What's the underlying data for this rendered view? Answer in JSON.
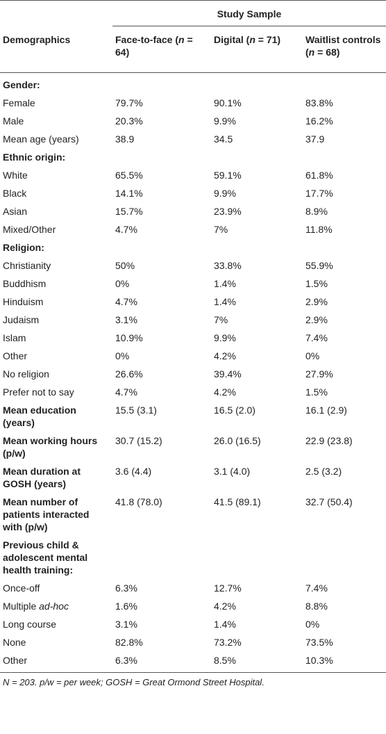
{
  "table": {
    "title": "Study Sample",
    "columns": [
      "Demographics",
      [
        "Face-to-face (",
        "n",
        " = 64)"
      ],
      [
        "Digital (",
        "n",
        " = 71)"
      ],
      [
        "Waitlist controls (",
        "n",
        " = 68)"
      ]
    ],
    "rows": [
      {
        "label": "Gender:",
        "bold": true
      },
      {
        "label": "Female",
        "values": [
          "79.7%",
          "90.1%",
          "83.8%"
        ]
      },
      {
        "label": "Male",
        "values": [
          "20.3%",
          "9.9%",
          "16.2%"
        ]
      },
      {
        "label": "Mean age (years)",
        "values": [
          "38.9",
          "34.5",
          "37.9"
        ]
      },
      {
        "label": "Ethnic origin:",
        "bold": true
      },
      {
        "label": "White",
        "values": [
          "65.5%",
          "59.1%",
          "61.8%"
        ]
      },
      {
        "label": "Black",
        "values": [
          "14.1%",
          "9.9%",
          "17.7%"
        ]
      },
      {
        "label": "Asian",
        "values": [
          "15.7%",
          "23.9%",
          "8.9%"
        ]
      },
      {
        "label": "Mixed/Other",
        "values": [
          "4.7%",
          "7%",
          "11.8%"
        ]
      },
      {
        "label": "Religion:",
        "bold": true
      },
      {
        "label": "Christianity",
        "values": [
          "50%",
          "33.8%",
          "55.9%"
        ]
      },
      {
        "label": "Buddhism",
        "values": [
          "0%",
          "1.4%",
          "1.5%"
        ]
      },
      {
        "label": "Hinduism",
        "values": [
          "4.7%",
          "1.4%",
          "2.9%"
        ]
      },
      {
        "label": "Judaism",
        "values": [
          "3.1%",
          "7%",
          "2.9%"
        ]
      },
      {
        "label": "Islam",
        "values": [
          "10.9%",
          "9.9%",
          "7.4%"
        ]
      },
      {
        "label": "Other",
        "values": [
          "0%",
          "4.2%",
          "0%"
        ]
      },
      {
        "label": "No religion",
        "values": [
          "26.6%",
          "39.4%",
          "27.9%"
        ]
      },
      {
        "label": "Prefer not to say",
        "values": [
          "4.7%",
          "4.2%",
          "1.5%"
        ]
      },
      {
        "label": "Mean education (years)",
        "bold": true,
        "values": [
          "15.5 (3.1)",
          "16.5 (2.0)",
          "16.1 (2.9)"
        ]
      },
      {
        "label": "Mean working hours (p/w)",
        "bold": true,
        "values": [
          "30.7 (15.2)",
          "26.0 (16.5)",
          "22.9 (23.8)"
        ]
      },
      {
        "label": "Mean duration at GOSH (years)",
        "bold": true,
        "values": [
          "3.6 (4.4)",
          "3.1 (4.0)",
          "2.5 (3.2)"
        ]
      },
      {
        "label": "Mean number of patients interacted with (p/w)",
        "bold": true,
        "values": [
          "41.8 (78.0)",
          "41.5 (89.1)",
          "32.7 (50.4)"
        ]
      },
      {
        "label": "Previous child & adolescent mental health training:",
        "bold": true
      },
      {
        "label": "Once-off",
        "values": [
          "6.3%",
          "12.7%",
          "7.4%"
        ]
      },
      {
        "label": [
          "Multiple ",
          "ad-hoc"
        ],
        "values": [
          "1.6%",
          "4.2%",
          "8.8%"
        ]
      },
      {
        "label": "Long course",
        "values": [
          "3.1%",
          "1.4%",
          "0%"
        ]
      },
      {
        "label": "None",
        "values": [
          "82.8%",
          "73.2%",
          "73.5%"
        ]
      },
      {
        "label": "Other",
        "values": [
          "6.3%",
          "8.5%",
          "10.3%"
        ]
      }
    ],
    "footnote": "N = 203. p/w = per week; GOSH = Great Ormond Street Hospital."
  }
}
